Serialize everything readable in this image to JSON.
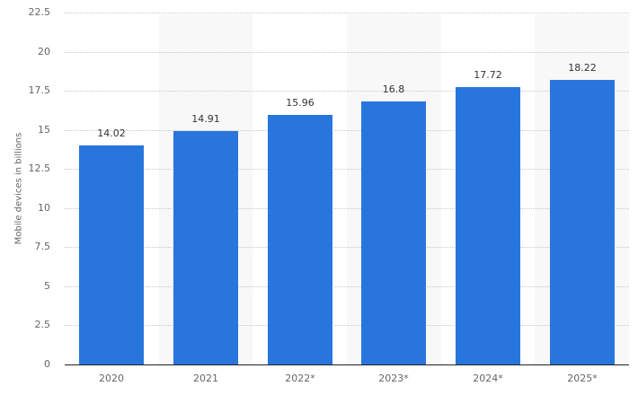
{
  "chart_data": {
    "type": "bar",
    "title": "",
    "xlabel": "",
    "ylabel": "Mobile devices in billions",
    "categories": [
      "2020",
      "2021",
      "2022*",
      "2023*",
      "2024*",
      "2025*"
    ],
    "values": [
      14.02,
      14.91,
      15.96,
      16.8,
      17.72,
      18.22
    ],
    "value_labels": [
      "14.02",
      "14.91",
      "15.96",
      "16.8",
      "17.72",
      "18.22"
    ],
    "ylim": [
      0,
      22.5
    ],
    "yticks": [
      "0",
      "2.5",
      "5",
      "7.5",
      "10",
      "12.5",
      "15",
      "17.5",
      "20",
      "22.5"
    ],
    "grid": true,
    "grid_style": "dotted",
    "legend": null,
    "bar_color": "#2876dd",
    "alternate_band_color": "#f8f8f8"
  }
}
